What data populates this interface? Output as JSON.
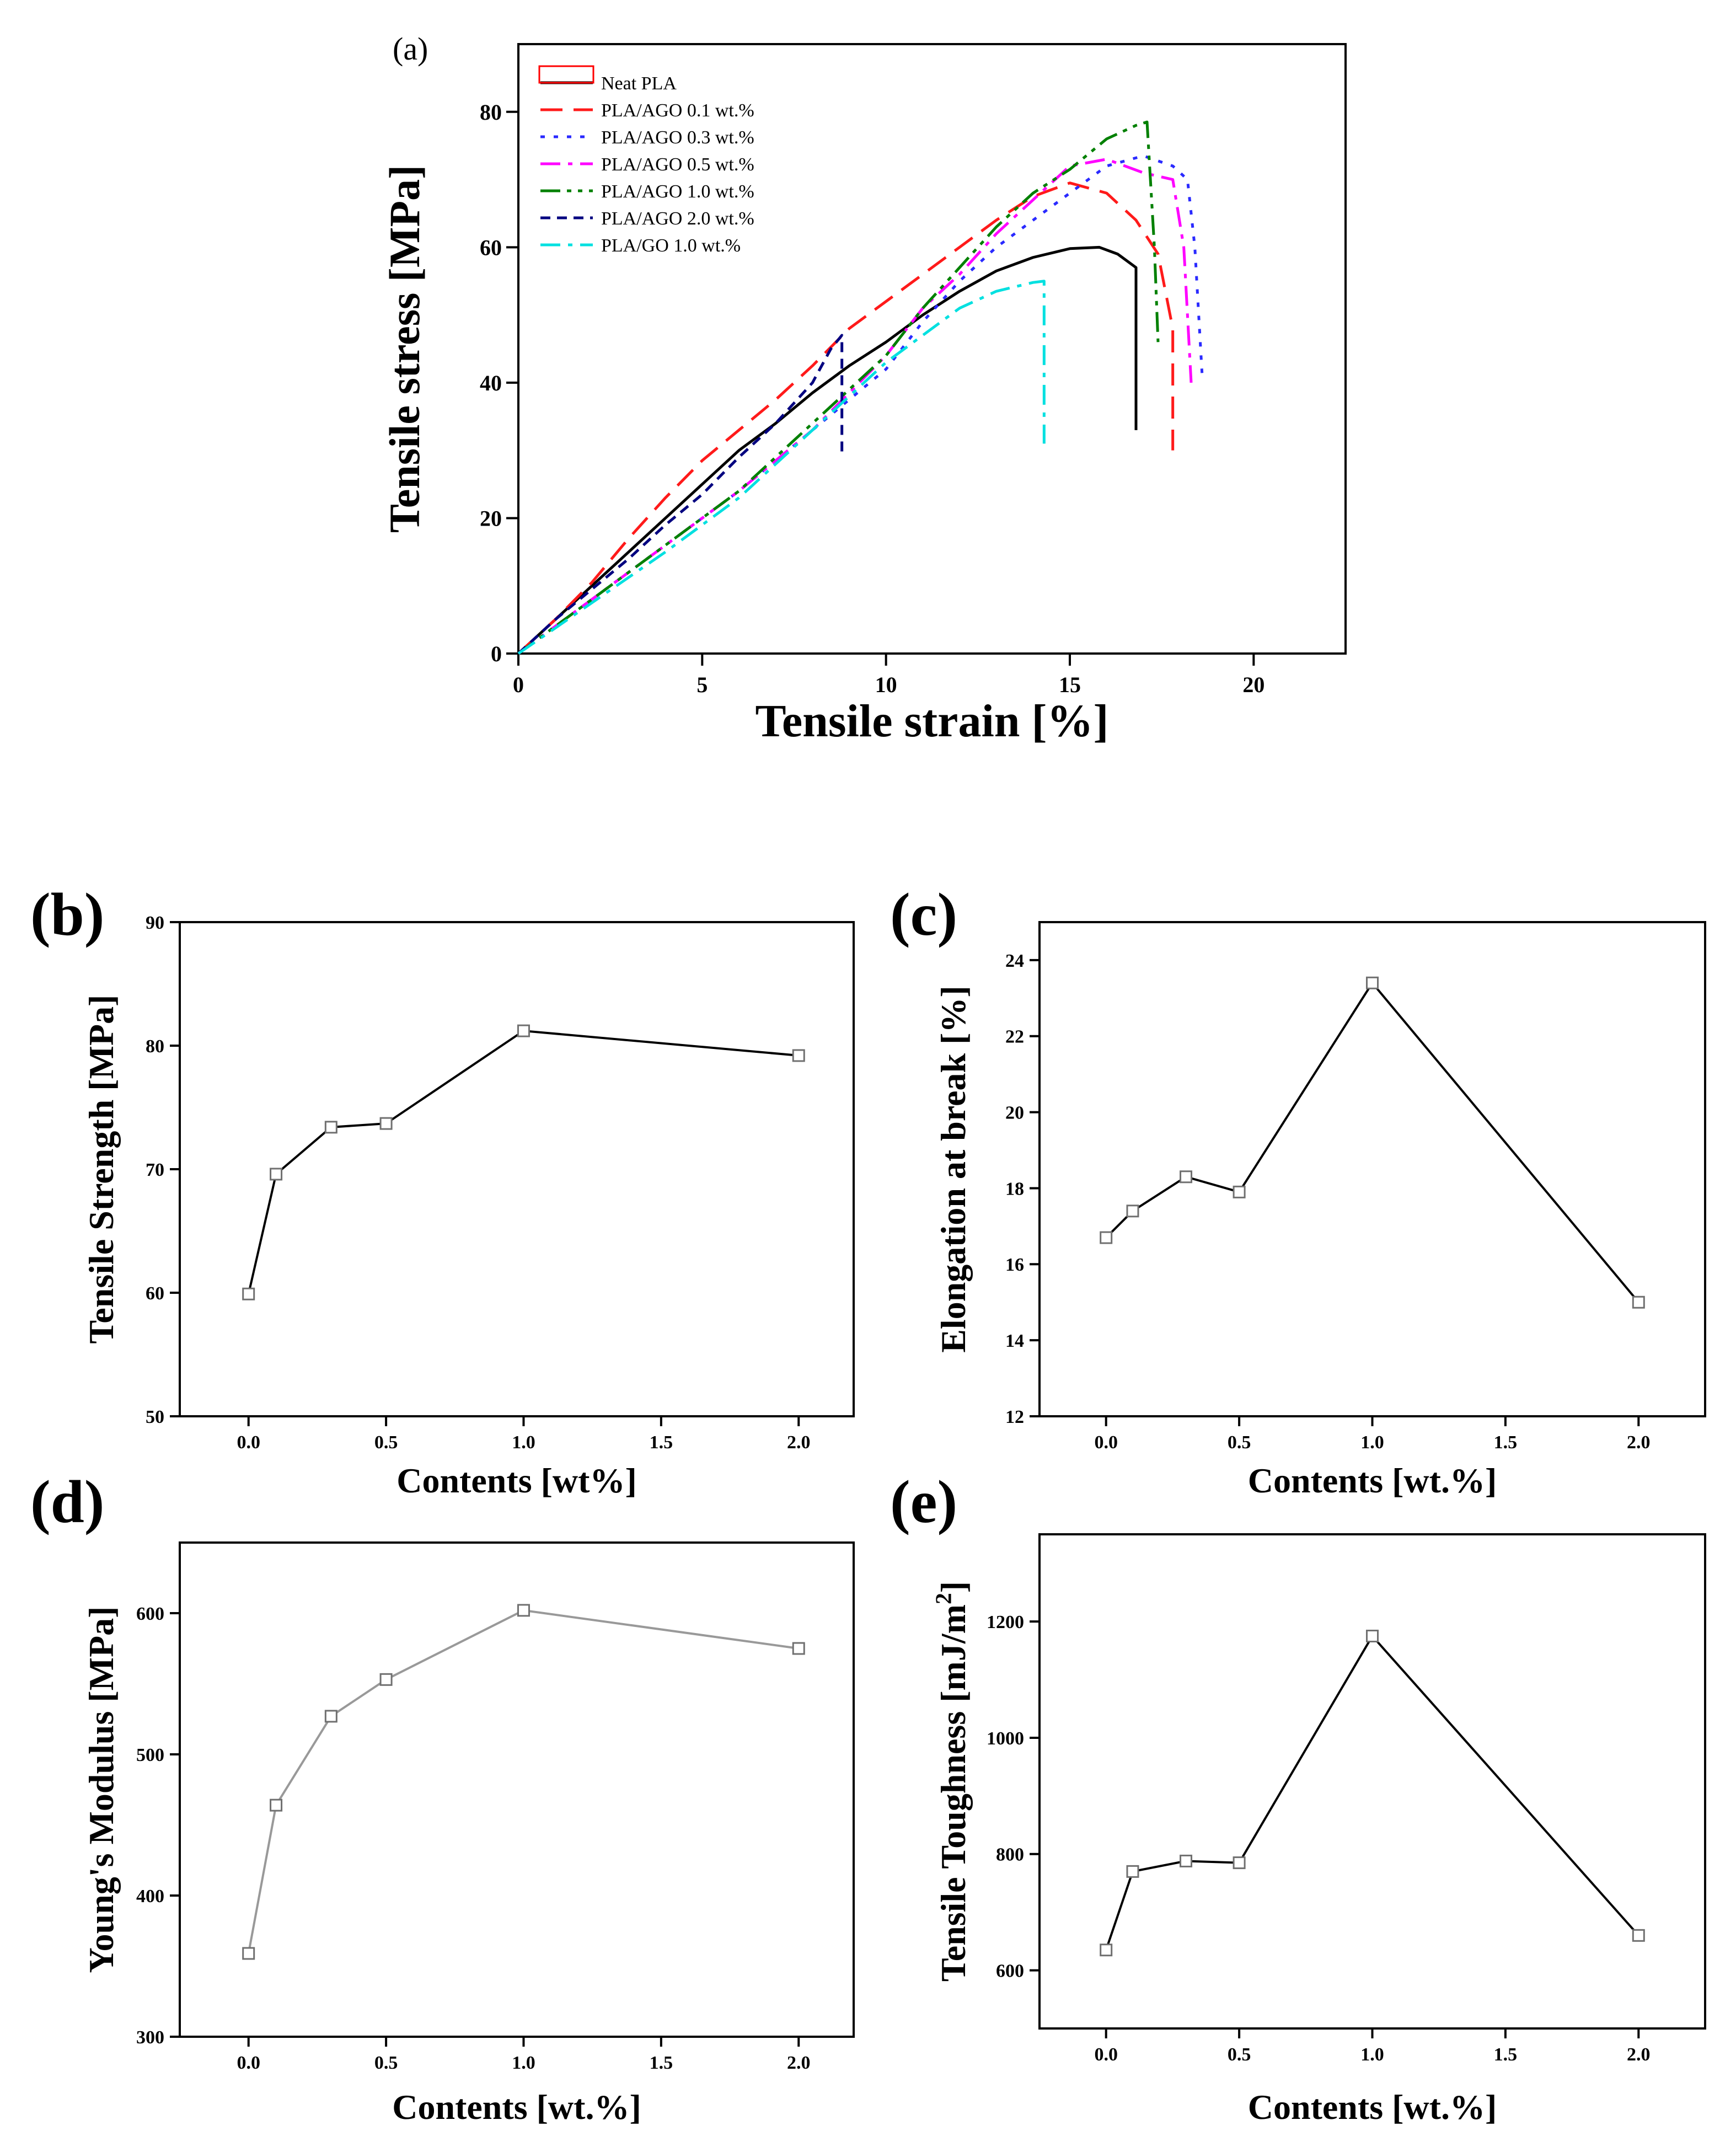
{
  "chart_data": [
    {
      "panel": "(a)",
      "type": "line",
      "title": "",
      "xlabel": "Tensile strain [%]",
      "ylabel": "Tensile stress [MPa]",
      "xlim": [
        0,
        22.5
      ],
      "ylim": [
        0,
        90
      ],
      "xticks": [
        0,
        5,
        10,
        15,
        20
      ],
      "yticks": [
        0,
        20,
        40,
        60,
        80
      ],
      "xtick_labels": [
        "0",
        "5",
        "10",
        "15",
        "20"
      ],
      "ytick_labels": [
        "0",
        "20",
        "40",
        "60",
        "80"
      ],
      "legend_position": "top-left",
      "series": [
        {
          "name": "Neat PLA",
          "color": "#000000",
          "dash": "solid",
          "x": [
            0,
            1,
            2,
            3,
            4,
            5,
            6,
            7,
            8,
            9,
            10,
            11,
            12,
            13,
            14,
            15,
            15.8,
            16.3,
            16.8,
            16.8
          ],
          "y": [
            0,
            5,
            10,
            15,
            20,
            25,
            30,
            34,
            38.5,
            42.5,
            46,
            50,
            53.5,
            56.5,
            58.5,
            59.8,
            60,
            59,
            57,
            33
          ]
        },
        {
          "name": "PLA/AGO 0.1 wt.%",
          "color": "#ff1a1a",
          "dash": "dashed",
          "x": [
            0,
            1,
            2,
            3,
            4,
            5,
            6,
            7,
            8,
            9,
            10,
            11,
            12,
            13,
            14,
            15,
            16,
            16.8,
            17.4,
            17.8,
            17.8
          ],
          "y": [
            0,
            5,
            10.5,
            17,
            23,
            28.5,
            33,
            37.5,
            42.5,
            48,
            52,
            56,
            60,
            64,
            67.5,
            69.5,
            68,
            64,
            59,
            48,
            30
          ]
        },
        {
          "name": "PLA/AGO 0.3 wt.%",
          "color": "#2a2aff",
          "dash": "dotted",
          "x": [
            0,
            2,
            4,
            6,
            8,
            10,
            11,
            12,
            13,
            14,
            15,
            16,
            17,
            17.8,
            18.2,
            18.4,
            18.6
          ],
          "y": [
            0,
            8,
            16,
            24,
            33,
            42,
            49,
            55,
            60,
            64,
            68,
            72,
            73.5,
            72,
            70,
            60,
            41
          ]
        },
        {
          "name": "PLA/AGO 0.5 wt.%",
          "color": "#ff00ff",
          "dash": "dashdot",
          "x": [
            0,
            2,
            4,
            6,
            8,
            10,
            11,
            12,
            13,
            14,
            15,
            16,
            17,
            17.8,
            18.1,
            18.3
          ],
          "y": [
            0,
            8,
            16,
            24,
            33,
            44,
            51,
            56,
            62,
            67,
            72,
            73,
            71,
            70,
            60,
            40
          ]
        },
        {
          "name": "PLA/AGO 1.0 wt.%",
          "color": "#008000",
          "dash": "dashdotdot",
          "x": [
            0,
            2,
            4,
            6,
            8,
            10,
            11,
            12,
            13,
            14,
            15,
            16,
            16.8,
            17.1,
            17.3,
            17.4
          ],
          "y": [
            0,
            8,
            16,
            24,
            34,
            44,
            51,
            57,
            63,
            68,
            71.5,
            76,
            78,
            78.5,
            60,
            46
          ]
        },
        {
          "name": "PLA/AGO 2.0 wt.%",
          "color": "#000080",
          "dash": "shortdash",
          "x": [
            0,
            1,
            2,
            3,
            4,
            5,
            6,
            7,
            8,
            8.5,
            8.8,
            8.8
          ],
          "y": [
            0,
            5,
            9.5,
            14,
            19,
            23.5,
            29,
            34,
            40,
            45,
            47,
            29
          ]
        },
        {
          "name": "PLA/GO 1.0 wt.%",
          "color": "#00e0e0",
          "dash": "dashdot",
          "x": [
            0,
            2,
            4,
            6,
            8,
            9,
            10,
            11,
            12,
            13,
            14,
            14.3,
            14.3
          ],
          "y": [
            0,
            7.5,
            15,
            23,
            33,
            38,
            43,
            47,
            51,
            53.5,
            54.8,
            55,
            31
          ]
        }
      ]
    },
    {
      "panel": "(b)",
      "type": "line",
      "xlabel": "Contents [wt%]",
      "ylabel": "Tensile Strength [MPa]",
      "xlim": [
        -0.25,
        2.2
      ],
      "ylim": [
        50,
        90
      ],
      "xticks": [
        0,
        0.5,
        1.0,
        1.5,
        2.0
      ],
      "yticks": [
        50,
        60,
        70,
        80,
        90
      ],
      "xtick_labels": [
        "0.0",
        "0.5",
        "1.0",
        "1.5",
        "2.0"
      ],
      "ytick_labels": [
        "50",
        "60",
        "70",
        "80",
        "90"
      ],
      "line_color": "#000000",
      "x": [
        0,
        0.1,
        0.3,
        0.5,
        1.0,
        2.0
      ],
      "y": [
        59.9,
        69.6,
        73.4,
        73.7,
        81.2,
        79.2
      ]
    },
    {
      "panel": "(c)",
      "type": "line",
      "xlabel": "Contents [wt.%]",
      "ylabel": "Elongation at break [%]",
      "xlim": [
        -0.25,
        2.25
      ],
      "ylim": [
        12,
        25
      ],
      "xticks": [
        0,
        0.5,
        1.0,
        1.5,
        2.0
      ],
      "yticks": [
        12,
        14,
        16,
        18,
        20,
        22,
        24
      ],
      "xtick_labels": [
        "0.0",
        "0.5",
        "1.0",
        "1.5",
        "2.0"
      ],
      "ytick_labels": [
        "12",
        "14",
        "16",
        "18",
        "20",
        "22",
        "24"
      ],
      "line_color": "#000000",
      "x": [
        0,
        0.1,
        0.3,
        0.5,
        1.0,
        2.0
      ],
      "y": [
        16.7,
        17.4,
        18.3,
        17.9,
        23.4,
        15.0
      ]
    },
    {
      "panel": "(d)",
      "type": "line",
      "xlabel": "Contents [wt.%]",
      "ylabel": "Young's Modulus [MPa]",
      "xlim": [
        -0.25,
        2.2
      ],
      "ylim": [
        300,
        650
      ],
      "xticks": [
        0,
        0.5,
        1.0,
        1.5,
        2.0
      ],
      "yticks": [
        300,
        400,
        500,
        600
      ],
      "xtick_labels": [
        "0.0",
        "0.5",
        "1.0",
        "1.5",
        "2.0"
      ],
      "ytick_labels": [
        "300",
        "400",
        "500",
        "600"
      ],
      "line_color": "#999999",
      "x": [
        0,
        0.1,
        0.3,
        0.5,
        1.0,
        2.0
      ],
      "y": [
        359,
        464,
        527,
        553,
        602,
        575
      ]
    },
    {
      "panel": "(e)",
      "type": "line",
      "xlabel": "Contents [wt.%]",
      "ylabel": "Tensile Toughness [mJ/m",
      "ylabel_sup": "2",
      "ylabel_end": "]",
      "xlim": [
        -0.25,
        2.25
      ],
      "ylim": [
        500,
        1350
      ],
      "xticks": [
        0,
        0.5,
        1.0,
        1.5,
        2.0
      ],
      "yticks": [
        600,
        800,
        1000,
        1200
      ],
      "xtick_labels": [
        "0.0",
        "0.5",
        "1.0",
        "1.5",
        "2.0"
      ],
      "ytick_labels": [
        "600",
        "800",
        "1000",
        "1200"
      ],
      "line_color": "#000000",
      "x": [
        0,
        0.1,
        0.3,
        0.5,
        1.0,
        2.0
      ],
      "y": [
        635,
        770,
        788,
        785,
        1175,
        660
      ]
    }
  ]
}
